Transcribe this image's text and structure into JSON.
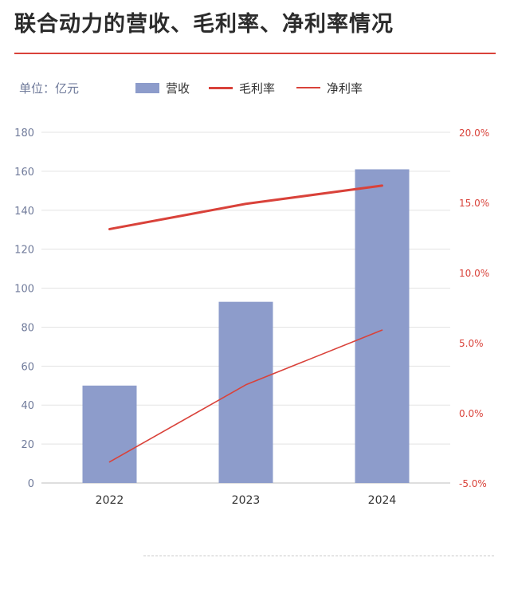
{
  "header": {
    "title": "联合动力的营收、毛利率、净利率情况"
  },
  "unit_label": "单位：亿元",
  "legend": {
    "revenue": "营收",
    "gross_margin": "毛利率",
    "net_margin": "净利率"
  },
  "colors": {
    "bar": "#8d9ccb",
    "line": "#d9423a",
    "left_axis_text": "#6f7a9a",
    "right_axis_text": "#d9423a",
    "grid": "#e3e3e3"
  },
  "chart_data": {
    "type": "bar",
    "categories": [
      "2022",
      "2023",
      "2024"
    ],
    "series": [
      {
        "name": "营收",
        "type": "bar",
        "axis": "left",
        "values": [
          50,
          93,
          161
        ]
      },
      {
        "name": "毛利率",
        "type": "line",
        "axis": "right",
        "values": [
          13.1,
          14.9,
          16.2
        ]
      },
      {
        "name": "净利率",
        "type": "line",
        "axis": "right",
        "values": [
          -3.5,
          2.0,
          5.9
        ]
      }
    ],
    "left_axis": {
      "min": 0,
      "max": 180,
      "step": 20,
      "ticks": [
        "0",
        "20",
        "40",
        "60",
        "80",
        "100",
        "120",
        "140",
        "160",
        "180"
      ]
    },
    "right_axis": {
      "min": -5,
      "max": 20,
      "step": 5,
      "ticks": [
        "-5.0%",
        "0.0%",
        "5.0%",
        "10.0%",
        "15.0%",
        "20.0%"
      ]
    },
    "grid": true,
    "legend_position": "top"
  }
}
